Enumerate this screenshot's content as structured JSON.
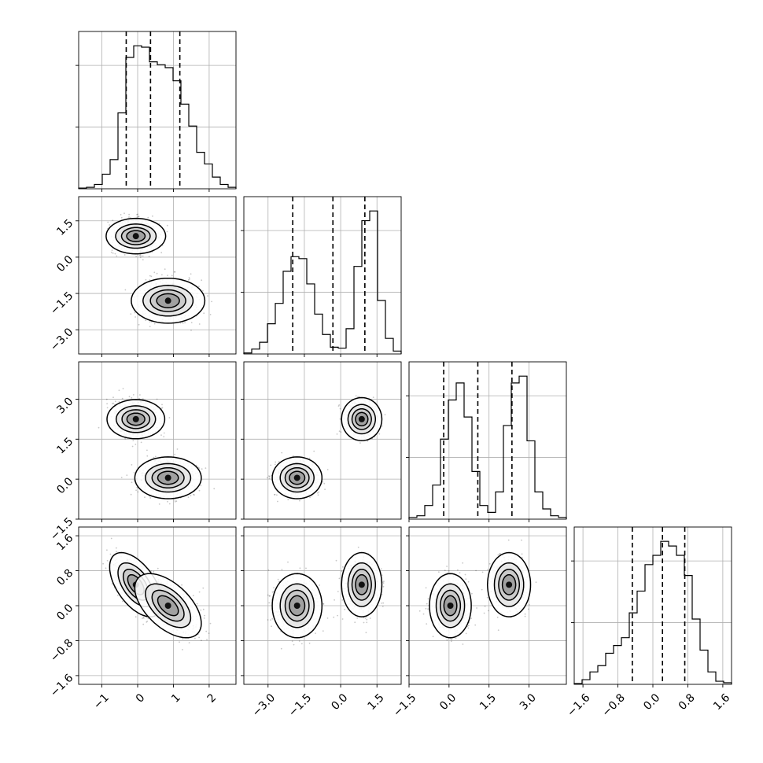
{
  "chart_data": {
    "type": "corner",
    "parameters": [
      {
        "name": "",
        "range": [
          -1.65,
          2.75
        ],
        "ticks": [
          -1,
          0,
          1,
          2
        ],
        "tick_labels": [
          "−1",
          "0",
          "1",
          "2"
        ]
      },
      {
        "name": "",
        "range": [
          -4.0,
          2.5
        ],
        "ticks": [
          -3.0,
          -1.5,
          0.0,
          1.5
        ],
        "tick_labels": [
          "−3.0",
          "−1.5",
          "0.0",
          "1.5"
        ]
      },
      {
        "name": "",
        "range": [
          -1.5,
          4.4
        ],
        "ticks": [
          -1.5,
          0.0,
          1.5,
          3.0
        ],
        "tick_labels": [
          "−1.5",
          "0.0",
          "1.5",
          "3.0"
        ]
      },
      {
        "name": "",
        "range": [
          -1.8,
          1.8
        ],
        "ticks": [
          -1.6,
          -0.8,
          0.0,
          0.8,
          1.6
        ],
        "tick_labels": [
          "−1.6",
          "−0.8",
          "0.0",
          "0.8",
          "1.6"
        ]
      }
    ],
    "histograms": [
      {
        "bins": [
          -1.65,
          -1.43,
          -1.21,
          -0.99,
          -0.77,
          -0.55,
          -0.33,
          -0.11,
          0.11,
          0.33,
          0.55,
          0.77,
          0.99,
          1.21,
          1.43,
          1.65,
          1.87,
          2.09,
          2.31,
          2.53,
          2.75
        ],
        "counts": [
          0.5,
          1,
          3,
          10,
          20,
          52,
          90,
          98,
          97,
          87,
          85,
          83,
          74,
          58,
          43,
          25,
          17,
          8,
          3,
          1
        ],
        "quantiles": [
          -0.32,
          0.36,
          1.18
        ]
      },
      {
        "bins": [
          -4.0,
          -3.675,
          -3.35,
          -3.025,
          -2.7,
          -2.375,
          -2.05,
          -1.725,
          -1.4,
          -1.075,
          -0.75,
          -0.425,
          -0.1,
          0.225,
          0.55,
          0.875,
          1.2,
          1.525,
          1.85,
          2.175,
          2.5
        ],
        "counts": [
          1,
          5,
          12,
          31,
          52,
          85,
          100,
          98,
          72,
          41,
          20,
          7,
          6,
          26,
          90,
          137,
          147,
          55,
          16,
          3
        ],
        "quantiles": [
          -1.98,
          -0.32,
          1.0
        ]
      },
      {
        "bins": [
          -1.5,
          -1.205,
          -0.91,
          -0.615,
          -0.32,
          -0.025,
          0.27,
          0.565,
          0.86,
          1.155,
          1.45,
          1.745,
          2.04,
          2.335,
          2.63,
          2.925,
          3.22,
          3.515,
          3.81,
          4.105,
          4.4
        ],
        "counts": [
          1,
          2,
          8,
          20,
          47,
          70,
          80,
          60,
          28,
          8,
          4,
          16,
          55,
          80,
          84,
          46,
          16,
          6,
          2,
          1
        ],
        "quantiles": [
          -0.2,
          1.08,
          2.36
        ]
      },
      {
        "bins": [
          -1.8,
          -1.62,
          -1.44,
          -1.26,
          -1.08,
          -0.9,
          -0.72,
          -0.54,
          -0.36,
          -0.18,
          0.0,
          0.18,
          0.36,
          0.54,
          0.72,
          0.9,
          1.08,
          1.26,
          1.44,
          1.62,
          1.8
        ],
        "counts": [
          0.5,
          3,
          8,
          12,
          20,
          25,
          30,
          46,
          60,
          77,
          83,
          92,
          89,
          83,
          70,
          42,
          22,
          8,
          2,
          1
        ],
        "quantiles": [
          -0.47,
          0.22,
          0.73
        ]
      }
    ],
    "clusters": [
      {
        "center": [
          -0.05,
          0.87,
          2.25,
          0.48
        ],
        "sd": [
          0.3,
          0.34,
          0.33,
          0.3
        ],
        "weight": 0.5
      },
      {
        "center": [
          0.85,
          -1.8,
          0.05,
          0.0
        ],
        "sd": [
          0.38,
          0.42,
          0.32,
          0.3
        ],
        "weight": 0.5
      }
    ],
    "contour_levels": [
      0.25,
      0.5,
      0.75,
      0.95
    ]
  }
}
